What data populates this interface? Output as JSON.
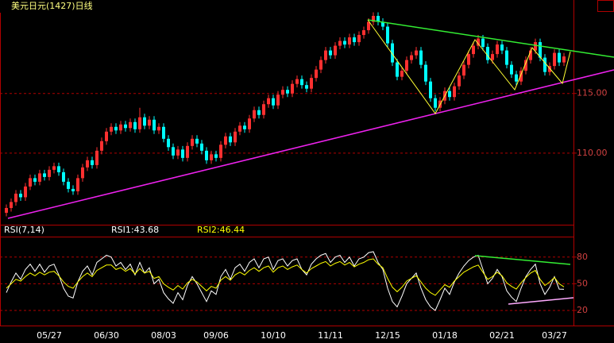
{
  "chart_data": [
    {
      "type": "candlestick",
      "title": "美元日元(1427)日线",
      "up_color": "#ff3030",
      "down_color": "#00ffff",
      "grid": true,
      "ylim": [
        104,
        121.9
      ],
      "yticks": [
        {
          "value": 110,
          "label": "110.00"
        },
        {
          "value": 115,
          "label": "115.00"
        }
      ],
      "open": [
        105.0,
        105.4,
        105.9,
        106.6,
        106.3,
        107.2,
        107.9,
        107.6,
        108.3,
        108.0,
        108.6,
        108.9,
        108.4,
        107.6,
        107.0,
        106.8,
        107.9,
        108.8,
        109.4,
        109.0,
        110.2,
        111.0,
        111.8,
        112.2,
        111.9,
        112.4,
        112.1,
        112.6,
        112.0,
        113.0,
        112.3,
        112.8,
        111.9,
        112.2,
        111.2,
        110.5,
        109.8,
        110.3,
        109.6,
        110.6,
        111.2,
        110.8,
        110.2,
        109.4,
        109.9,
        109.6,
        110.7,
        111.4,
        110.9,
        111.8,
        112.3,
        112.0,
        112.9,
        113.6,
        113.2,
        114.1,
        114.6,
        114.0,
        114.9,
        115.3,
        115.0,
        115.8,
        116.2,
        115.7,
        115.4,
        116.3,
        117.0,
        117.8,
        118.6,
        118.2,
        119.0,
        119.4,
        119.1,
        119.7,
        119.3,
        119.9,
        120.3,
        121.0,
        121.5,
        121.0,
        120.6,
        119.2,
        117.6,
        116.4,
        116.9,
        117.8,
        118.2,
        118.6,
        117.4,
        116.0,
        114.6,
        113.8,
        114.4,
        115.2,
        114.7,
        115.6,
        116.5,
        117.4,
        118.3,
        119.0,
        119.6,
        118.9,
        117.8,
        118.3,
        119.1,
        118.6,
        117.4,
        116.6,
        116.0,
        116.9,
        117.8,
        118.6,
        119.3,
        118.0,
        116.8,
        117.3,
        118.4,
        117.6
      ],
      "high": [
        105.7,
        106.2,
        106.9,
        106.9,
        107.5,
        108.2,
        108.2,
        108.6,
        108.6,
        108.9,
        109.2,
        109.2,
        108.7,
        107.9,
        107.3,
        108.2,
        109.1,
        109.7,
        109.7,
        110.5,
        111.3,
        112.1,
        112.5,
        112.5,
        112.7,
        112.7,
        112.9,
        112.9,
        113.8,
        113.3,
        113.1,
        113.1,
        112.5,
        112.5,
        111.5,
        110.8,
        110.6,
        110.6,
        110.9,
        111.5,
        111.5,
        111.1,
        110.5,
        110.2,
        110.2,
        111.0,
        111.7,
        111.7,
        112.1,
        112.6,
        112.6,
        113.2,
        113.9,
        113.9,
        114.4,
        114.9,
        114.9,
        115.2,
        115.6,
        115.6,
        116.1,
        116.5,
        116.5,
        116.0,
        116.6,
        117.3,
        118.1,
        118.9,
        118.9,
        119.3,
        119.7,
        119.7,
        120.0,
        120.0,
        120.2,
        120.6,
        121.3,
        121.8,
        121.8,
        121.3,
        120.9,
        119.5,
        117.9,
        117.2,
        118.1,
        118.5,
        118.9,
        118.9,
        117.7,
        116.3,
        114.9,
        114.7,
        115.5,
        115.5,
        115.9,
        116.8,
        117.7,
        118.6,
        119.3,
        119.9,
        119.9,
        119.2,
        118.6,
        119.4,
        119.4,
        118.9,
        117.7,
        116.9,
        117.2,
        118.1,
        118.9,
        119.6,
        119.6,
        118.3,
        117.6,
        118.7,
        118.7,
        118.4
      ],
      "low": [
        104.7,
        105.1,
        105.6,
        106.0,
        106.0,
        106.9,
        107.3,
        107.3,
        107.7,
        107.7,
        108.3,
        108.1,
        107.3,
        106.7,
        106.5,
        106.5,
        107.6,
        108.5,
        108.7,
        108.7,
        109.9,
        110.7,
        111.5,
        111.6,
        111.6,
        111.8,
        111.8,
        111.7,
        111.7,
        112.0,
        112.0,
        111.6,
        111.6,
        110.9,
        110.2,
        109.5,
        109.5,
        109.3,
        109.3,
        110.3,
        110.5,
        109.9,
        109.1,
        109.1,
        109.3,
        109.3,
        110.4,
        110.6,
        110.6,
        111.5,
        111.7,
        111.7,
        112.6,
        112.9,
        112.9,
        113.8,
        113.7,
        113.7,
        114.6,
        114.7,
        114.7,
        115.5,
        115.4,
        115.1,
        115.1,
        116.0,
        116.7,
        117.5,
        117.9,
        117.9,
        118.7,
        118.8,
        118.8,
        119.0,
        119.0,
        119.6,
        120.0,
        120.7,
        120.7,
        120.3,
        118.9,
        117.3,
        116.1,
        116.1,
        116.6,
        117.5,
        117.9,
        117.1,
        115.7,
        114.3,
        113.5,
        113.5,
        114.1,
        114.4,
        114.4,
        115.3,
        116.2,
        117.1,
        118.0,
        118.7,
        118.6,
        117.5,
        117.5,
        118.0,
        118.3,
        117.1,
        116.3,
        115.7,
        115.7,
        116.6,
        117.5,
        118.3,
        117.7,
        116.5,
        116.5,
        117.0,
        117.3,
        117.3
      ],
      "close": [
        105.4,
        105.9,
        106.6,
        106.3,
        107.2,
        107.9,
        107.6,
        108.3,
        108.0,
        108.6,
        108.9,
        108.4,
        107.6,
        107.0,
        106.8,
        107.9,
        108.8,
        109.4,
        109.0,
        110.2,
        111.0,
        111.8,
        112.2,
        111.9,
        112.4,
        112.1,
        112.6,
        112.0,
        113.0,
        112.3,
        112.8,
        111.9,
        112.2,
        111.2,
        110.5,
        109.8,
        110.3,
        109.6,
        110.6,
        111.2,
        110.8,
        110.2,
        109.4,
        109.9,
        109.6,
        110.7,
        111.4,
        110.9,
        111.8,
        112.3,
        112.0,
        112.9,
        113.6,
        113.2,
        114.1,
        114.6,
        114.0,
        114.9,
        115.3,
        115.0,
        115.8,
        116.2,
        115.7,
        115.4,
        116.3,
        117.0,
        117.8,
        118.6,
        118.2,
        119.0,
        119.4,
        119.1,
        119.7,
        119.3,
        119.9,
        120.3,
        121.0,
        121.5,
        121.0,
        120.6,
        119.2,
        117.6,
        116.4,
        116.9,
        117.8,
        118.2,
        118.6,
        117.4,
        116.0,
        114.6,
        113.8,
        114.4,
        115.2,
        114.7,
        115.6,
        116.5,
        117.4,
        118.3,
        119.0,
        119.6,
        118.9,
        117.8,
        118.3,
        119.1,
        118.6,
        117.4,
        116.6,
        116.0,
        116.9,
        117.8,
        118.6,
        119.3,
        118.0,
        116.8,
        117.3,
        118.4,
        117.6,
        118.1
      ]
    },
    {
      "type": "line",
      "title": "RSI(7,14)",
      "grid": true,
      "ylim": [
        3,
        103
      ],
      "yticks": [
        20,
        50,
        80
      ],
      "categories": [
        null,
        null,
        null,
        null,
        null,
        null,
        null,
        null,
        null,
        "05/27",
        null,
        null,
        null,
        null,
        null,
        null,
        null,
        null,
        null,
        null,
        null,
        "06/30",
        null,
        null,
        null,
        null,
        null,
        null,
        null,
        null,
        null,
        null,
        null,
        "08/03",
        null,
        null,
        null,
        null,
        null,
        null,
        null,
        null,
        null,
        null,
        "09/06",
        null,
        null,
        null,
        null,
        null,
        null,
        null,
        null,
        null,
        null,
        null,
        "10/10",
        null,
        null,
        null,
        null,
        null,
        null,
        null,
        null,
        null,
        null,
        null,
        "11/11",
        null,
        null,
        null,
        null,
        null,
        null,
        null,
        null,
        null,
        null,
        null,
        "12/15",
        null,
        null,
        null,
        null,
        null,
        null,
        null,
        null,
        null,
        null,
        null,
        "01/18",
        null,
        null,
        null,
        null,
        null,
        null,
        null,
        null,
        null,
        null,
        null,
        "02/21",
        null,
        null,
        null,
        null,
        null,
        null,
        null,
        null,
        null,
        null,
        "03/27",
        null,
        null
      ],
      "series": [
        {
          "name": "RSI1:43.68",
          "color": "#ffffff",
          "values": [
            40,
            52,
            62,
            55,
            66,
            72,
            64,
            72,
            63,
            70,
            72,
            60,
            45,
            36,
            34,
            52,
            64,
            70,
            60,
            74,
            78,
            82,
            80,
            70,
            74,
            66,
            72,
            60,
            74,
            62,
            68,
            50,
            55,
            40,
            33,
            28,
            40,
            32,
            48,
            58,
            50,
            40,
            30,
            42,
            38,
            58,
            66,
            55,
            68,
            72,
            64,
            74,
            78,
            68,
            78,
            80,
            66,
            76,
            78,
            70,
            76,
            78,
            66,
            60,
            72,
            78,
            82,
            84,
            74,
            80,
            82,
            74,
            80,
            70,
            78,
            80,
            85,
            86,
            74,
            66,
            45,
            30,
            24,
            36,
            50,
            56,
            62,
            45,
            32,
            24,
            20,
            32,
            45,
            38,
            52,
            62,
            70,
            76,
            80,
            82,
            66,
            50,
            56,
            66,
            58,
            42,
            35,
            30,
            45,
            58,
            66,
            72,
            50,
            38,
            46,
            58,
            44,
            43.68
          ]
        },
        {
          "name": "RSI2:46.44",
          "color": "#ffff00",
          "values": [
            45,
            50,
            55,
            53,
            58,
            62,
            59,
            63,
            60,
            63,
            64,
            59,
            52,
            47,
            45,
            52,
            58,
            62,
            58,
            65,
            68,
            71,
            71,
            66,
            68,
            64,
            67,
            61,
            67,
            62,
            64,
            56,
            58,
            50,
            46,
            43,
            48,
            44,
            51,
            55,
            52,
            47,
            42,
            47,
            45,
            54,
            58,
            54,
            60,
            63,
            60,
            65,
            68,
            64,
            68,
            70,
            63,
            68,
            70,
            66,
            69,
            71,
            66,
            62,
            67,
            70,
            73,
            75,
            70,
            73,
            75,
            71,
            74,
            69,
            72,
            74,
            77,
            78,
            72,
            68,
            56,
            46,
            41,
            46,
            53,
            56,
            59,
            52,
            45,
            40,
            37,
            43,
            49,
            46,
            53,
            58,
            63,
            66,
            69,
            71,
            63,
            55,
            58,
            63,
            59,
            51,
            47,
            44,
            51,
            57,
            62,
            65,
            55,
            48,
            52,
            57,
            50,
            46.44
          ]
        }
      ]
    }
  ]
}
